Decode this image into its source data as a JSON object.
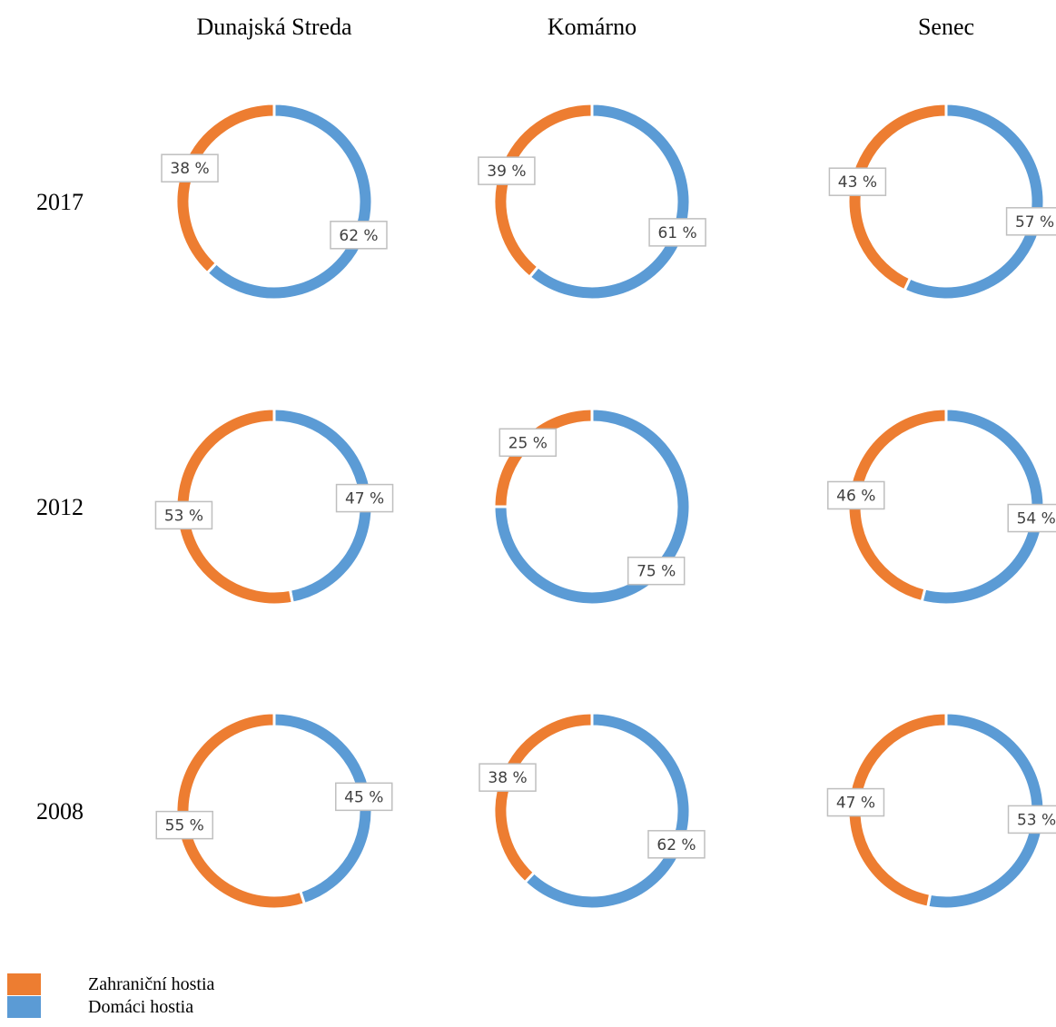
{
  "column_titles": [
    "Dunajská Streda",
    "Komárno",
    "Senec"
  ],
  "row_titles": [
    "2017",
    "2012",
    "2008"
  ],
  "legend": [
    {
      "name": "Zahraniční hostia",
      "color": "#ed7d31"
    },
    {
      "name": "Domáci hostia",
      "color": "#5b9bd5"
    }
  ],
  "chart_data": [
    {
      "type": "donut",
      "colors": [
        "#5b9bd5",
        "#ed7d31"
      ],
      "values": [
        62,
        38
      ],
      "value_labels": [
        "62 %",
        "38 %"
      ]
    },
    {
      "type": "donut",
      "colors": [
        "#5b9bd5",
        "#ed7d31"
      ],
      "values": [
        61,
        39
      ],
      "value_labels": [
        "61 %",
        "39 %"
      ]
    },
    {
      "type": "donut",
      "colors": [
        "#5b9bd5",
        "#ed7d31"
      ],
      "values": [
        57,
        43
      ],
      "value_labels": [
        "57 %",
        "43 %"
      ]
    },
    {
      "type": "donut",
      "colors": [
        "#5b9bd5",
        "#ed7d31"
      ],
      "values": [
        47,
        53
      ],
      "value_labels": [
        "47 %",
        "53 %"
      ]
    },
    {
      "type": "donut",
      "colors": [
        "#5b9bd5",
        "#ed7d31"
      ],
      "values": [
        75,
        25
      ],
      "value_labels": [
        "75 %",
        "25 %"
      ]
    },
    {
      "type": "donut",
      "colors": [
        "#5b9bd5",
        "#ed7d31"
      ],
      "values": [
        54,
        46
      ],
      "value_labels": [
        "54 %",
        "46 %"
      ]
    },
    {
      "type": "donut",
      "colors": [
        "#5b9bd5",
        "#ed7d31"
      ],
      "values": [
        45,
        55
      ],
      "value_labels": [
        "45 %",
        "55 %"
      ]
    },
    {
      "type": "donut",
      "colors": [
        "#5b9bd5",
        "#ed7d31"
      ],
      "values": [
        62,
        38
      ],
      "value_labels": [
        "62 %",
        "38 %"
      ]
    },
    {
      "type": "donut",
      "colors": [
        "#5b9bd5",
        "#ed7d31"
      ],
      "values": [
        53,
        47
      ],
      "value_labels": [
        "53 %",
        "47 %"
      ]
    }
  ]
}
